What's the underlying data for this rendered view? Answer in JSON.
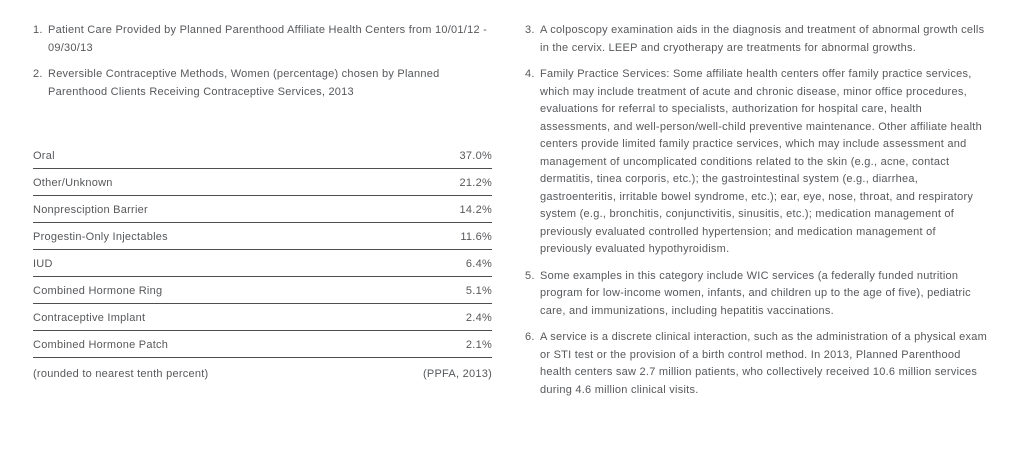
{
  "theme": {
    "background_color": "#ffffff",
    "text_color": "#56585b",
    "rule_color": "#4c4e50"
  },
  "left_column": {
    "notes": [
      {
        "number": "1.",
        "text": "Patient Care Provided by Planned Parenthood Affiliate Health Centers from 10/01/12 - 09/30/13"
      },
      {
        "number": "2.",
        "text": "Reversible Contraceptive Methods, Women (percentage) chosen by Planned Parenthood Clients Receiving Contraceptive Services, 2013"
      }
    ],
    "table": {
      "rows": [
        {
          "label": "Oral",
          "value": "37.0%"
        },
        {
          "label": "Other/Unknown",
          "value": "21.2%"
        },
        {
          "label": "Nonpresciption Barrier",
          "value": "14.2%"
        },
        {
          "label": "Progestin-Only Injectables",
          "value": "11.6%"
        },
        {
          "label": "IUD",
          "value": "6.4%"
        },
        {
          "label": "Combined Hormone Ring",
          "value": "5.1%"
        },
        {
          "label": "Contraceptive Implant",
          "value": "2.4%"
        },
        {
          "label": "Combined Hormone Patch",
          "value": "2.1%"
        }
      ],
      "footer": {
        "left": "(rounded to nearest tenth percent)",
        "right": "(PPFA, 2013)"
      }
    }
  },
  "right_column": {
    "notes": [
      {
        "number": "3.",
        "text": "A colposcopy examination aids in the diagnosis and treatment of abnormal growth cells in the cervix. LEEP and cryotherapy are treatments for abnormal growths."
      },
      {
        "number": "4.",
        "text": "Family Practice Services: Some affiliate health centers offer family practice services, which may include treatment of acute and chronic disease, minor office procedures, evaluations for referral to specialists, authorization for hospital care, health assessments, and well-person/well-child preventive maintenance. Other affiliate health centers provide limited family practice services, which may include assessment and management of uncomplicated conditions related to the skin (e.g., acne, contact dermatitis, tinea corporis, etc.); the gastrointestinal system (e.g., diarrhea, gastroenteritis, irritable bowel syndrome, etc.); ear, eye, nose, throat, and respiratory system (e.g., bronchitis, conjunctivitis, sinusitis, etc.); medication management of previously evaluated controlled hypertension; and medication management of previously evaluated hypothyroidism."
      },
      {
        "number": "5.",
        "text": "Some examples in this category include WIC services (a federally funded nutrition program for low-income women, infants, and children up to the age of five), pediatric care, and immunizations, including hepatitis vaccinations."
      },
      {
        "number": "6.",
        "text": "A service is a discrete clinical interaction, such as the administration of a physical exam or STI test or the provision of a birth control method. In 2013, Planned Parenthood health centers saw 2.7 million patients, who collectively received 10.6 million services during 4.6 million clinical visits."
      }
    ]
  }
}
